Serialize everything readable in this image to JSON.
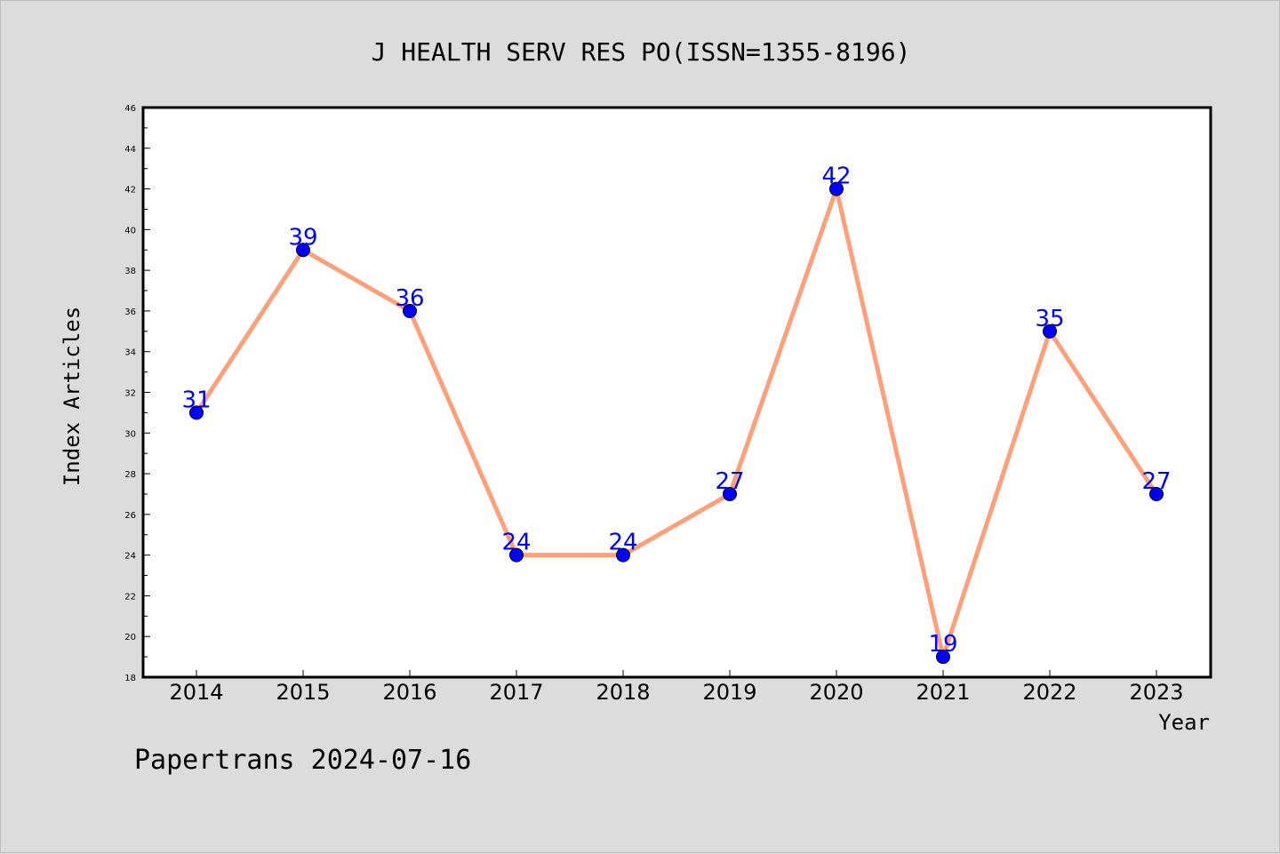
{
  "chart_data": {
    "type": "line",
    "title": "J HEALTH SERV RES PO(ISSN=1355-8196)",
    "xlabel": "Year",
    "ylabel": "Index Articles",
    "categories": [
      "2014",
      "2015",
      "2016",
      "2017",
      "2018",
      "2019",
      "2020",
      "2021",
      "2022",
      "2023"
    ],
    "series": [
      {
        "values": [
          31,
          39,
          36,
          24,
          24,
          27,
          42,
          19,
          35,
          27
        ]
      }
    ],
    "ylim": [
      18,
      46
    ],
    "yticks": [
      18,
      20,
      22,
      24,
      26,
      28,
      30,
      32,
      34,
      36,
      38,
      40,
      42,
      44,
      46
    ],
    "grid": false,
    "data_labels": true,
    "colors": {
      "line": "#ffa07a",
      "marker": "#0000ff",
      "label": "#0000ff",
      "background": "#dcdcdc",
      "plot_area": "#ffffff"
    }
  },
  "footer": {
    "text": "Papertrans 2024-07-16"
  }
}
